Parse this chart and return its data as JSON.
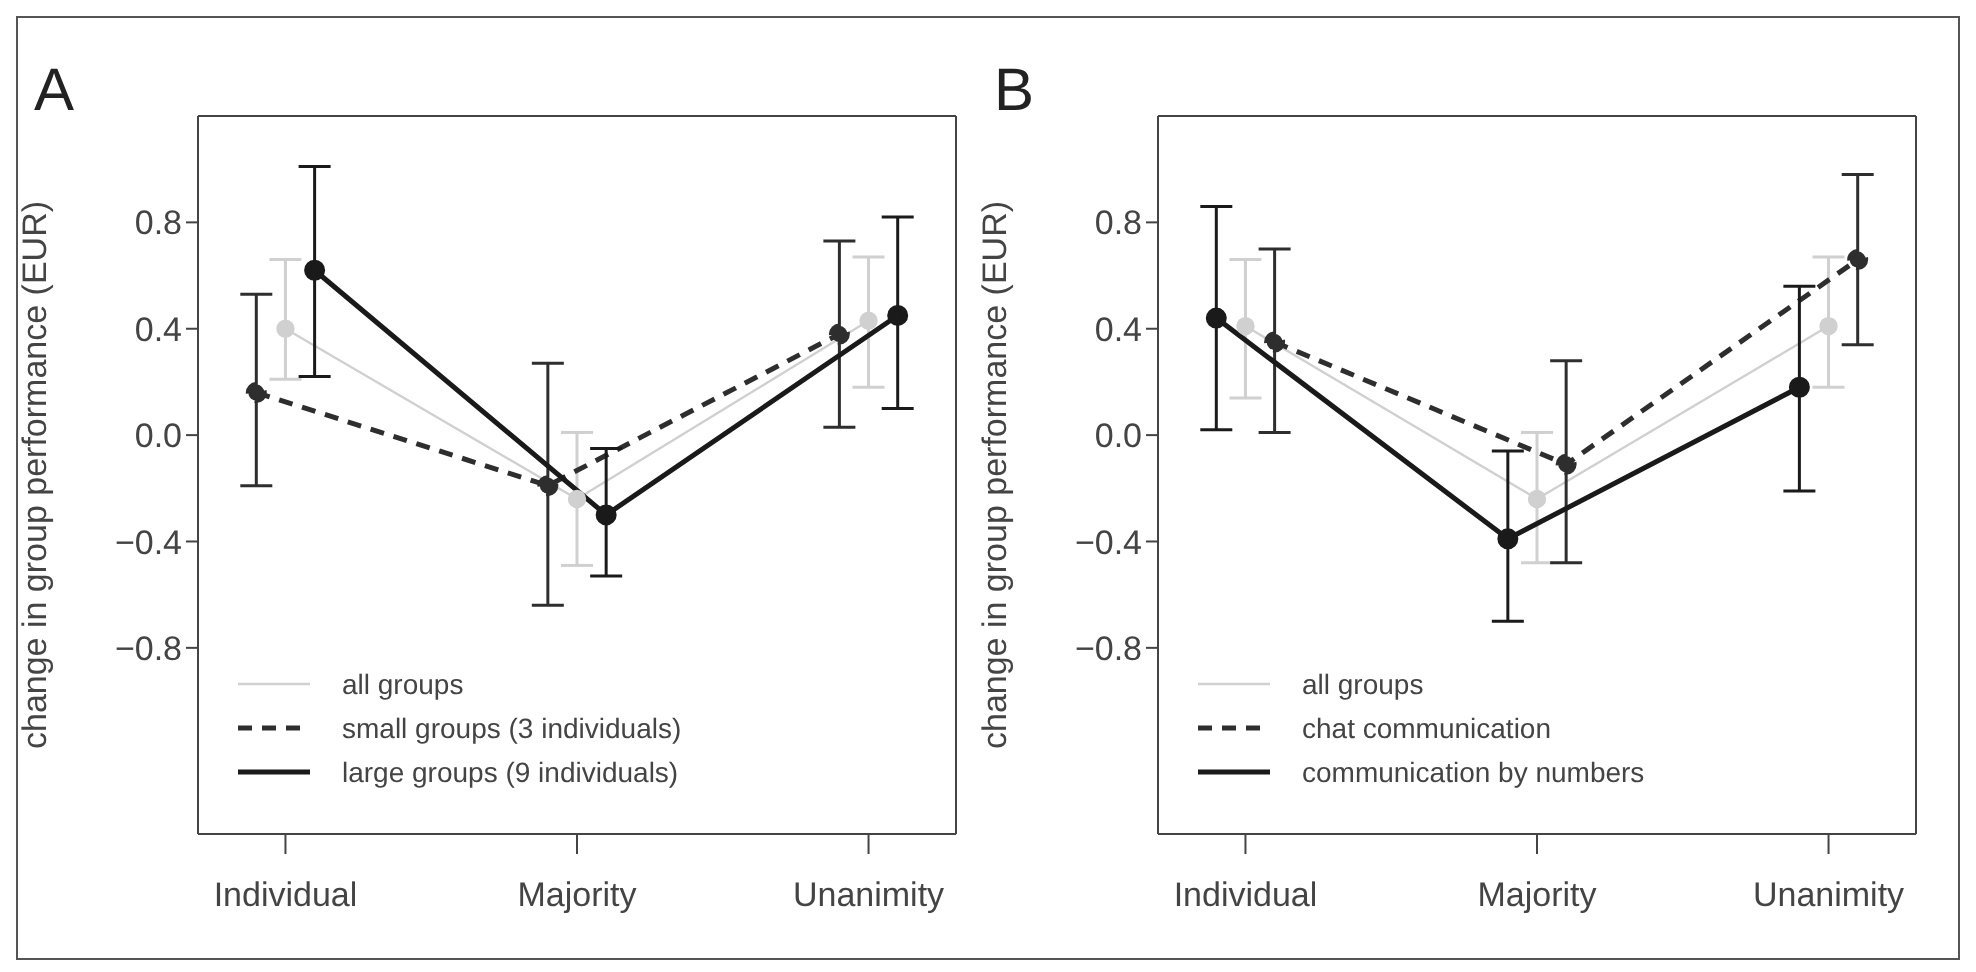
{
  "chart_data": [
    {
      "type": "line",
      "title": "A",
      "ylabel": "change in group performance (EUR)",
      "categories": [
        "Individual",
        "Majority",
        "Unanimity"
      ],
      "ylim": [
        -1.5,
        1.2
      ],
      "yticks": [
        -0.8,
        -0.4,
        {
          "value": 0,
          "label": "0.0"
        },
        0.4,
        0.8
      ],
      "grid": false,
      "legend": "bottom",
      "marker": "circle",
      "series": [
        {
          "name": "all groups",
          "color": "#d0d0d0",
          "line_style": "solid",
          "values": [
            0.4,
            -0.24,
            0.43
          ],
          "errors": [
            [
              0.21,
              0.66
            ],
            [
              -0.49,
              0.01
            ],
            [
              0.18,
              0.67
            ]
          ]
        },
        {
          "name": "small groups (3 individuals)",
          "color": "#2e2e2e",
          "line_style": "dashed",
          "values": [
            0.16,
            -0.19,
            0.38
          ],
          "errors": [
            [
              -0.19,
              0.53
            ],
            [
              -0.64,
              0.27
            ],
            [
              0.03,
              0.73
            ]
          ]
        },
        {
          "name": "large groups (9 individuals)",
          "color": "#1a1a1a",
          "line_style": "solid",
          "values": [
            0.62,
            -0.3,
            0.45
          ],
          "errors": [
            [
              0.22,
              1.01
            ],
            [
              -0.53,
              -0.05
            ],
            [
              0.1,
              0.82
            ]
          ]
        }
      ]
    },
    {
      "type": "line",
      "title": "B",
      "ylabel": "change in group performance (EUR)",
      "categories": [
        "Individual",
        "Majority",
        "Unanimity"
      ],
      "ylim": [
        -1.5,
        1.2
      ],
      "yticks": [
        -0.8,
        -0.4,
        {
          "value": 0,
          "label": "0.0"
        },
        0.4,
        0.8
      ],
      "grid": false,
      "legend": "bottom",
      "marker": "circle",
      "series": [
        {
          "name": "all groups",
          "color": "#d0d0d0",
          "line_style": "solid",
          "values": [
            0.41,
            -0.24,
            0.41
          ],
          "errors": [
            [
              0.14,
              0.66
            ],
            [
              -0.48,
              0.01
            ],
            [
              0.18,
              0.67
            ]
          ]
        },
        {
          "name": "chat communication",
          "color": "#2e2e2e",
          "line_style": "dashed",
          "values": [
            0.35,
            -0.11,
            0.66
          ],
          "errors": [
            [
              0.01,
              0.7
            ],
            [
              -0.48,
              0.28
            ],
            [
              0.34,
              0.98
            ]
          ]
        },
        {
          "name": "communication by numbers",
          "color": "#1a1a1a",
          "line_style": "solid",
          "values": [
            0.44,
            -0.39,
            0.18
          ],
          "errors": [
            [
              0.02,
              0.86
            ],
            [
              -0.7,
              -0.06
            ],
            [
              -0.21,
              0.56
            ]
          ]
        }
      ]
    }
  ]
}
